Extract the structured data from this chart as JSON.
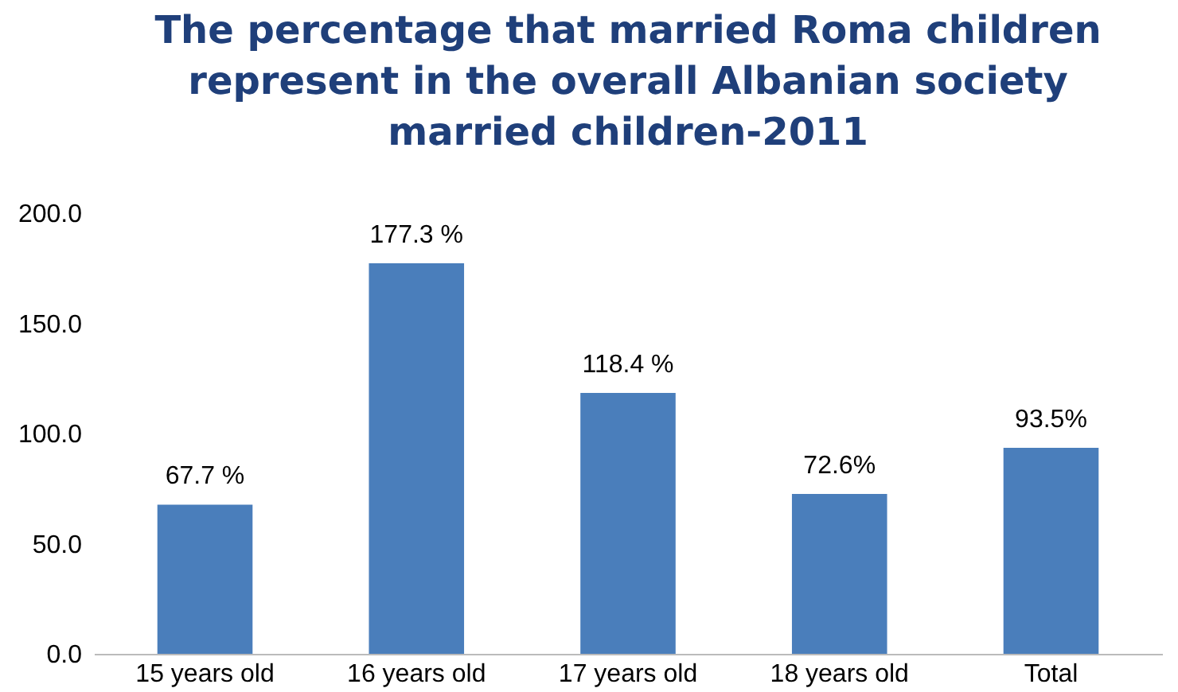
{
  "chart_data": {
    "type": "bar",
    "title": "The percentage that married Roma children represent in the overall Albanian society married children-2011",
    "categories": [
      "15 years old",
      "16  years old",
      "17  years old",
      "18  years old",
      "Total"
    ],
    "values": [
      67.7,
      177.3,
      118.4,
      72.6,
      93.5
    ],
    "value_labels": [
      "67.7 %",
      "177.3 %",
      "118.4 %",
      "72.6%",
      "93.5%"
    ],
    "color": "#4a7ebb",
    "ylim": [
      0,
      200
    ],
    "yticks": [
      {
        "value": 0,
        "label": "0.0"
      },
      {
        "value": 50,
        "label": "50.0"
      },
      {
        "value": 100,
        "label": "100.0"
      },
      {
        "value": 150,
        "label": "150.0"
      },
      {
        "value": 200,
        "label": "200.0"
      }
    ],
    "grid": false
  }
}
